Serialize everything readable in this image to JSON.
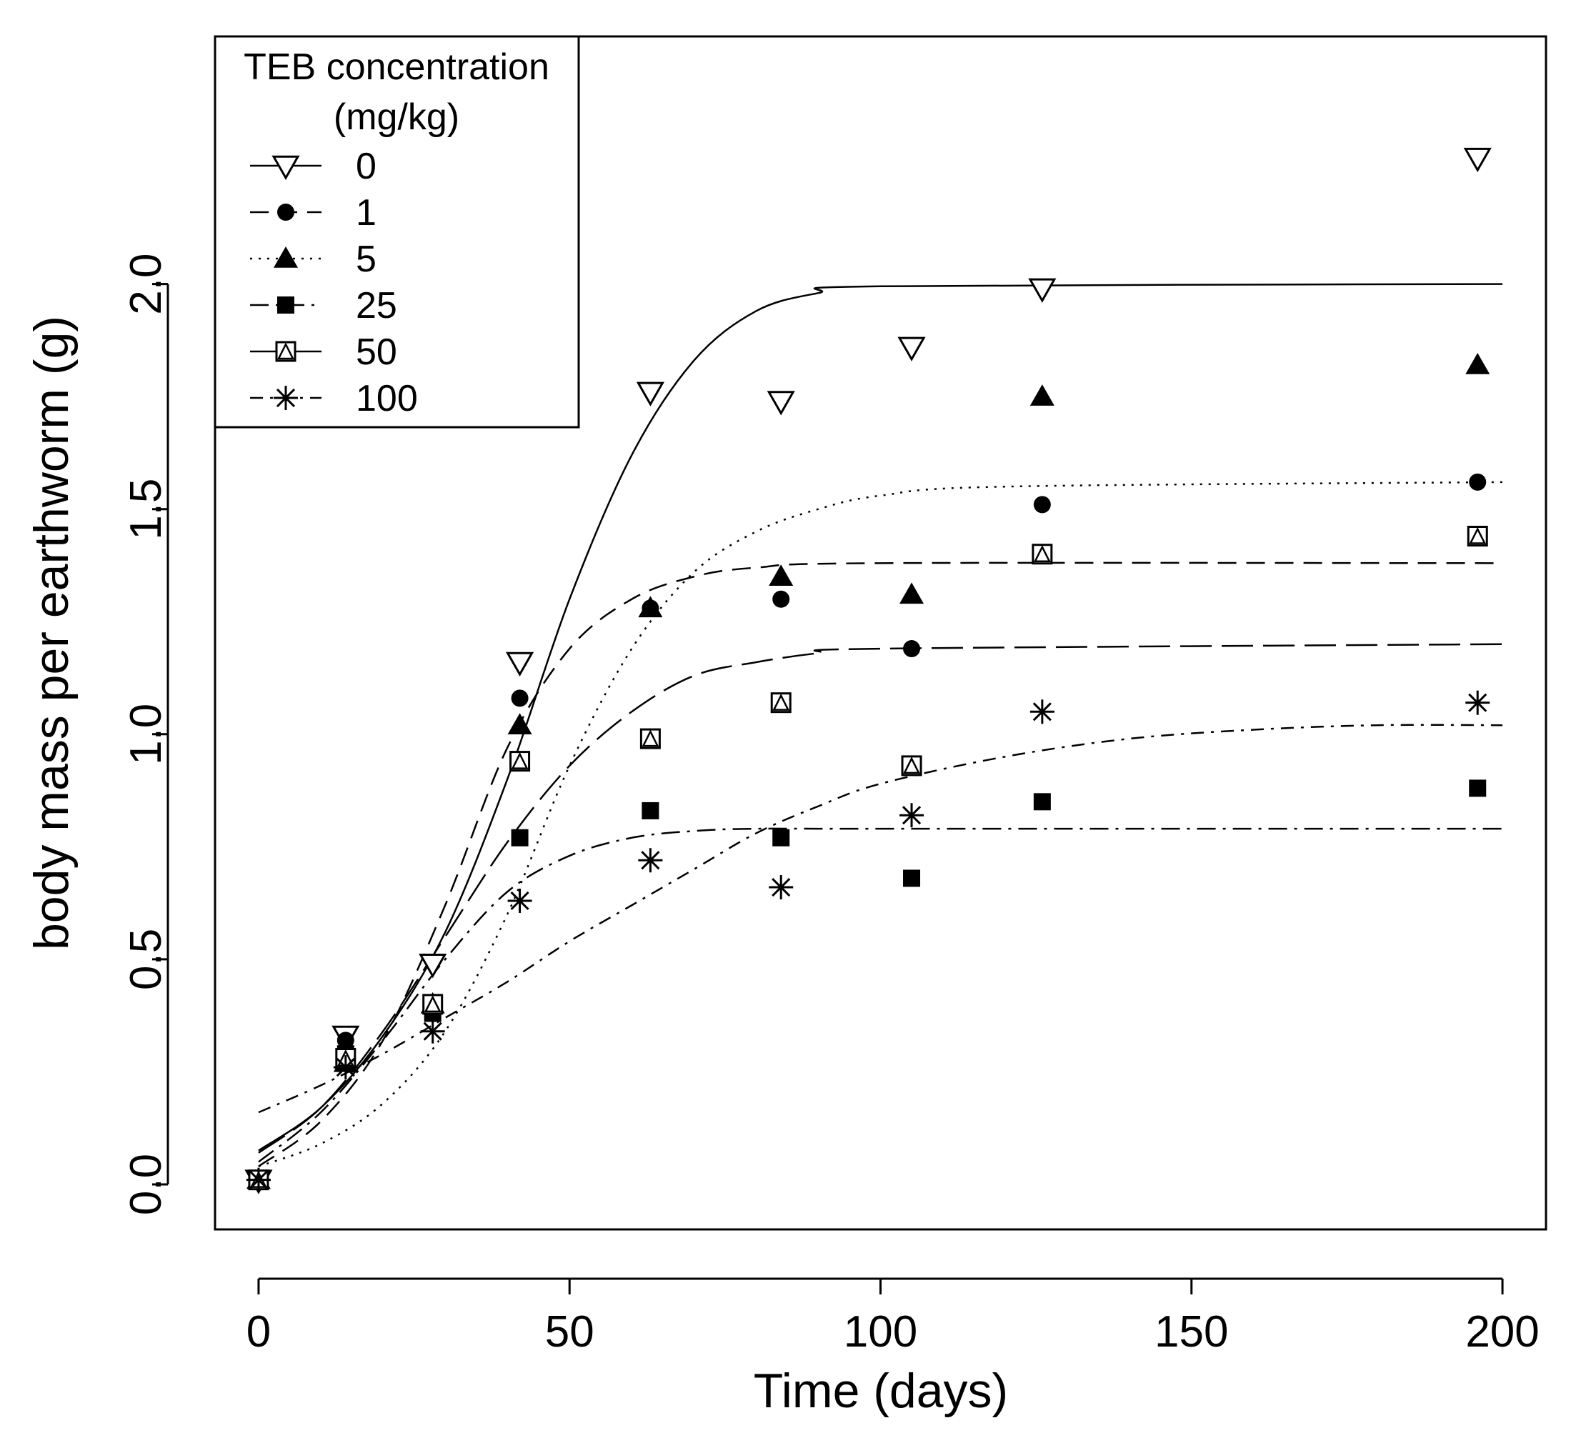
{
  "chart_data": {
    "type": "scatter",
    "xlabel": "Time (days)",
    "ylabel": "body mass per earthworm (g)",
    "xlim": [
      -7,
      207
    ],
    "ylim": [
      -0.1,
      2.55
    ],
    "xticks": [
      0,
      50,
      100,
      150,
      200
    ],
    "xtick_labels": [
      "0",
      "50",
      "100",
      "150",
      "200"
    ],
    "yticks": [
      0,
      0.5,
      1,
      1.5,
      2
    ],
    "ytick_labels": [
      "0.0",
      "0.5",
      "1.0",
      "1.5",
      "2.0"
    ],
    "legend": {
      "title_line1": "TEB concentration",
      "title_line2": "(mg/kg)",
      "placement": "top-left"
    },
    "series": [
      {
        "name": "0",
        "marker": "triangle-down-open",
        "line_style": "solid",
        "points": [
          [
            0,
            0.01
          ],
          [
            14,
            0.33
          ],
          [
            28,
            0.49
          ],
          [
            42,
            1.16
          ],
          [
            63,
            1.76
          ],
          [
            84,
            1.74
          ],
          [
            105,
            1.86
          ],
          [
            126,
            1.99
          ],
          [
            196,
            2.28
          ]
        ],
        "curve": [
          [
            0,
            0.075
          ],
          [
            10,
            0.17
          ],
          [
            20,
            0.33
          ],
          [
            30,
            0.56
          ],
          [
            40,
            0.9
          ],
          [
            50,
            1.3
          ],
          [
            60,
            1.62
          ],
          [
            70,
            1.83
          ],
          [
            80,
            1.94
          ],
          [
            90,
            1.98
          ],
          [
            100,
            1.995
          ],
          [
            200,
            2.0
          ]
        ]
      },
      {
        "name": "1",
        "marker": "circle-filled",
        "line_style": "dashed",
        "points": [
          [
            0,
            0.01
          ],
          [
            14,
            0.32
          ],
          [
            28,
            0.39
          ],
          [
            42,
            1.08
          ],
          [
            63,
            1.28
          ],
          [
            84,
            1.3
          ],
          [
            105,
            1.19
          ],
          [
            126,
            1.51
          ],
          [
            196,
            1.56
          ]
        ],
        "curve": [
          [
            0,
            0.04
          ],
          [
            10,
            0.14
          ],
          [
            20,
            0.32
          ],
          [
            30,
            0.62
          ],
          [
            40,
            0.97
          ],
          [
            50,
            1.19
          ],
          [
            60,
            1.3
          ],
          [
            70,
            1.35
          ],
          [
            80,
            1.37
          ],
          [
            100,
            1.38
          ],
          [
            200,
            1.38
          ]
        ]
      },
      {
        "name": "5",
        "marker": "triangle-up-filled",
        "line_style": "dotted",
        "points": [
          [
            0,
            0.01
          ],
          [
            14,
            0.27
          ],
          [
            28,
            0.4
          ],
          [
            42,
            1.02
          ],
          [
            63,
            1.28
          ],
          [
            84,
            1.35
          ],
          [
            105,
            1.31
          ],
          [
            126,
            1.75
          ],
          [
            196,
            1.82
          ]
        ],
        "curve": [
          [
            0,
            0.04
          ],
          [
            10,
            0.09
          ],
          [
            20,
            0.18
          ],
          [
            30,
            0.34
          ],
          [
            40,
            0.6
          ],
          [
            50,
            0.93
          ],
          [
            60,
            1.19
          ],
          [
            70,
            1.36
          ],
          [
            80,
            1.45
          ],
          [
            90,
            1.5
          ],
          [
            100,
            1.53
          ],
          [
            120,
            1.55
          ],
          [
            200,
            1.56
          ]
        ]
      },
      {
        "name": "25",
        "marker": "square-filled",
        "line_style": "dashdot-long",
        "points": [
          [
            0,
            0.01
          ],
          [
            14,
            0.29
          ],
          [
            28,
            0.38
          ],
          [
            42,
            0.77
          ],
          [
            63,
            0.83
          ],
          [
            84,
            0.77
          ],
          [
            105,
            0.68
          ],
          [
            126,
            0.85
          ],
          [
            196,
            0.88
          ]
        ],
        "curve": [
          [
            0,
            0.05
          ],
          [
            10,
            0.16
          ],
          [
            20,
            0.32
          ],
          [
            30,
            0.5
          ],
          [
            40,
            0.65
          ],
          [
            50,
            0.73
          ],
          [
            60,
            0.77
          ],
          [
            70,
            0.785
          ],
          [
            80,
            0.79
          ],
          [
            100,
            0.79
          ],
          [
            200,
            0.79
          ]
        ]
      },
      {
        "name": "50",
        "marker": "square-triangle-open",
        "line_style": "longdash",
        "points": [
          [
            0,
            0.01
          ],
          [
            14,
            0.28
          ],
          [
            28,
            0.4
          ],
          [
            42,
            0.94
          ],
          [
            63,
            0.99
          ],
          [
            84,
            1.07
          ],
          [
            105,
            0.93
          ],
          [
            126,
            1.4
          ],
          [
            196,
            1.44
          ]
        ],
        "curve": [
          [
            0,
            0.07
          ],
          [
            10,
            0.17
          ],
          [
            20,
            0.34
          ],
          [
            30,
            0.55
          ],
          [
            40,
            0.76
          ],
          [
            50,
            0.93
          ],
          [
            60,
            1.05
          ],
          [
            70,
            1.13
          ],
          [
            80,
            1.16
          ],
          [
            90,
            1.18
          ],
          [
            100,
            1.19
          ],
          [
            200,
            1.2
          ]
        ]
      },
      {
        "name": "100",
        "marker": "asterisk",
        "line_style": "dashdot",
        "points": [
          [
            0,
            0.01
          ],
          [
            14,
            0.26
          ],
          [
            28,
            0.34
          ],
          [
            42,
            0.63
          ],
          [
            63,
            0.72
          ],
          [
            84,
            0.66
          ],
          [
            105,
            0.82
          ],
          [
            126,
            1.05
          ],
          [
            196,
            1.07
          ]
        ],
        "curve": [
          [
            0,
            0.16
          ],
          [
            10,
            0.22
          ],
          [
            20,
            0.29
          ],
          [
            30,
            0.37
          ],
          [
            40,
            0.45
          ],
          [
            50,
            0.54
          ],
          [
            60,
            0.62
          ],
          [
            70,
            0.7
          ],
          [
            80,
            0.78
          ],
          [
            90,
            0.84
          ],
          [
            100,
            0.89
          ],
          [
            120,
            0.95
          ],
          [
            140,
            0.99
          ],
          [
            160,
            1.01
          ],
          [
            180,
            1.02
          ],
          [
            200,
            1.02
          ]
        ]
      }
    ]
  }
}
